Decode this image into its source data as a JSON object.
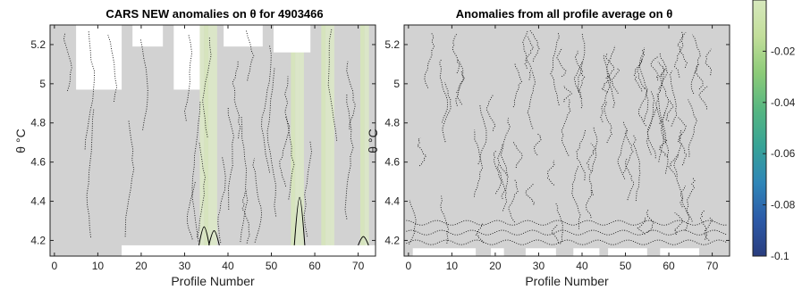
{
  "chart_data": [
    {
      "type": "heatmap",
      "title": "CARS NEW anomalies on θ for 4903466",
      "xlabel": "Profile Number",
      "ylabel": "θ °C",
      "xlim": [
        -1,
        74
      ],
      "ylim": [
        4.12,
        5.3
      ],
      "xticks": [
        0,
        10,
        20,
        30,
        40,
        50,
        60,
        70
      ],
      "yticks": [
        4.2,
        4.4,
        4.6,
        4.8,
        5,
        5.2
      ],
      "ytick_labels": [
        "4.2",
        "4.4",
        "4.6",
        "4.8",
        "5",
        "5.2"
      ],
      "grid": false,
      "missing_blocks": [
        {
          "x0": 5,
          "x1": 15.5,
          "y0": 4.97,
          "y1": 5.3
        },
        {
          "x0": 18,
          "x1": 25,
          "y0": 5.19,
          "y1": 5.3
        },
        {
          "x0": 27.5,
          "x1": 33.5,
          "y0": 4.97,
          "y1": 5.3
        },
        {
          "x0": 39,
          "x1": 48,
          "y0": 5.19,
          "y1": 5.3
        },
        {
          "x0": 50.5,
          "x1": 59,
          "y0": 5.16,
          "y1": 5.3
        },
        {
          "x0": 15.5,
          "x1": 74,
          "y0": 4.12,
          "y1": 4.175
        }
      ],
      "greenish_columns": [
        34,
        35,
        36,
        37,
        55,
        56,
        57,
        62,
        63,
        64,
        71,
        72
      ],
      "solid_contour_peaks": [
        {
          "x": 34.5,
          "y": 4.27
        },
        {
          "x": 36.8,
          "y": 4.25
        },
        {
          "x": 56.5,
          "y": 4.42
        },
        {
          "x": 71.2,
          "y": 4.22
        }
      ]
    },
    {
      "type": "heatmap",
      "title": "Anomalies from all profile average on θ",
      "xlabel": "Profile Number",
      "ylabel": "θ °C",
      "xlim": [
        -1,
        74
      ],
      "ylim": [
        4.12,
        5.3
      ],
      "xticks": [
        0,
        10,
        20,
        30,
        40,
        50,
        60,
        70
      ],
      "yticks": [
        4.2,
        4.4,
        4.6,
        4.8,
        5,
        5.2
      ],
      "ytick_labels": [
        "4.2",
        "4.4",
        "4.6",
        "4.8",
        "5",
        "5.2"
      ],
      "grid": false,
      "missing_blocks": [
        {
          "x0": 1,
          "x1": 15.5,
          "y0": 4.12,
          "y1": 4.16
        },
        {
          "x0": 19,
          "x1": 22,
          "y0": 4.12,
          "y1": 4.16
        },
        {
          "x0": 27,
          "x1": 34,
          "y0": 4.12,
          "y1": 4.16
        },
        {
          "x0": 38,
          "x1": 44,
          "y0": 4.12,
          "y1": 4.16
        },
        {
          "x0": 46,
          "x1": 55,
          "y0": 4.12,
          "y1": 4.16
        },
        {
          "x0": 58,
          "x1": 67,
          "y0": 4.12,
          "y1": 4.16
        }
      ]
    }
  ],
  "colorbar": {
    "ticks": [
      -0.02,
      -0.04,
      -0.06,
      -0.08,
      -0.1
    ],
    "tick_labels": [
      "-0.02",
      "-0.04",
      "-0.06",
      "-0.08",
      "-0.1"
    ],
    "range": [
      -0.1,
      0
    ],
    "colors": [
      "#2a3d7e",
      "#2c5aa8",
      "#2f86b8",
      "#37a396",
      "#56b681",
      "#8ccb78",
      "#c2de9a",
      "#d7e8bd"
    ]
  }
}
